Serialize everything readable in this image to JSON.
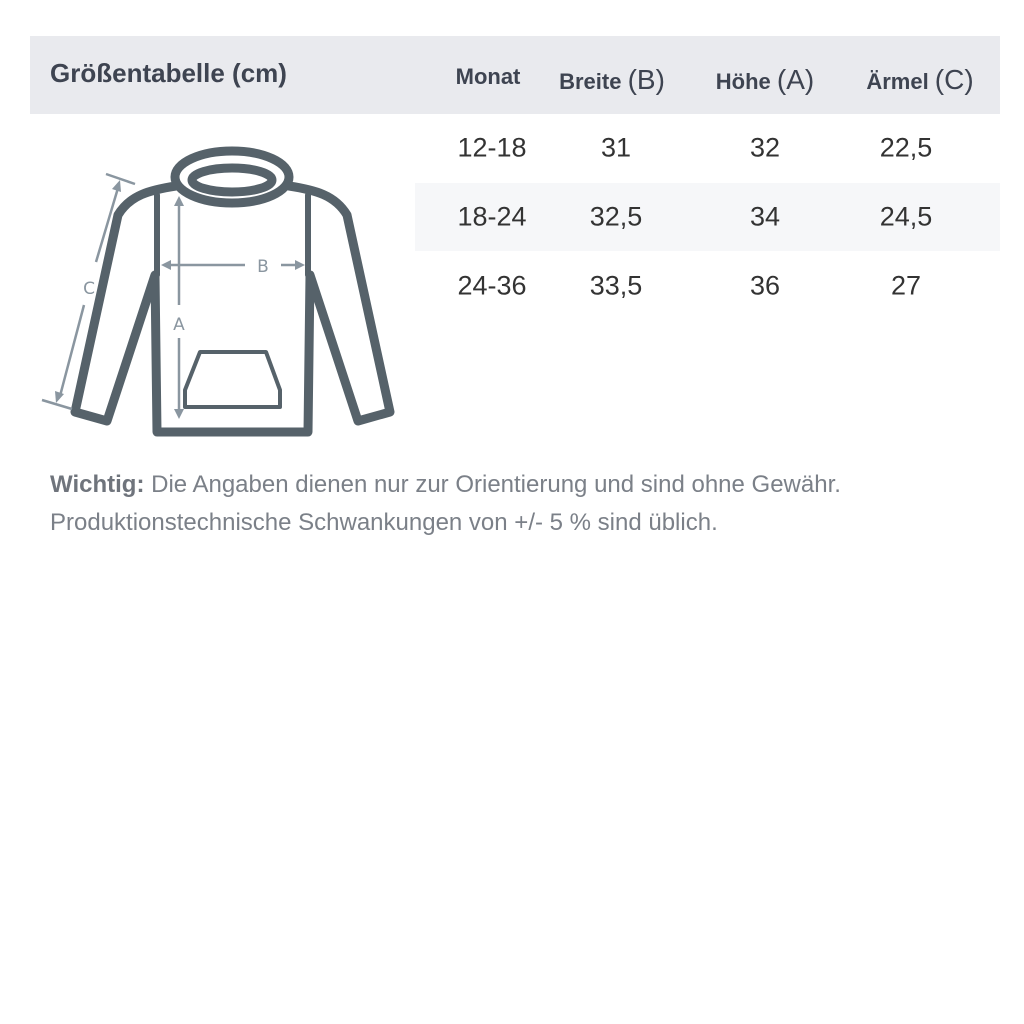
{
  "header": {
    "title": "Größentabelle (cm)",
    "columns": [
      {
        "label": "Monat",
        "letter": ""
      },
      {
        "label": "Breite",
        "letter": "(B)"
      },
      {
        "label": "Höhe",
        "letter": "(A)"
      },
      {
        "label": "Ärmel",
        "letter": "(C)"
      }
    ]
  },
  "rows": [
    [
      "12-18",
      "31",
      "32",
      "22,5"
    ],
    [
      "18-24",
      "32,5",
      "34",
      "24,5"
    ],
    [
      "24-36",
      "33,5",
      "36",
      "27"
    ]
  ],
  "diagram": {
    "label_a": "A",
    "label_b": "B",
    "label_c": "C",
    "outline_color": "#56626a",
    "arrow_color": "#8a96a0"
  },
  "note": {
    "bold": "Wichtig:",
    "line1": " Die Angaben dienen nur zur Orientierung und sind ohne Gewähr.",
    "line2": "Produktionstechnische Schwankungen von +/- 5 % sind üblich."
  }
}
